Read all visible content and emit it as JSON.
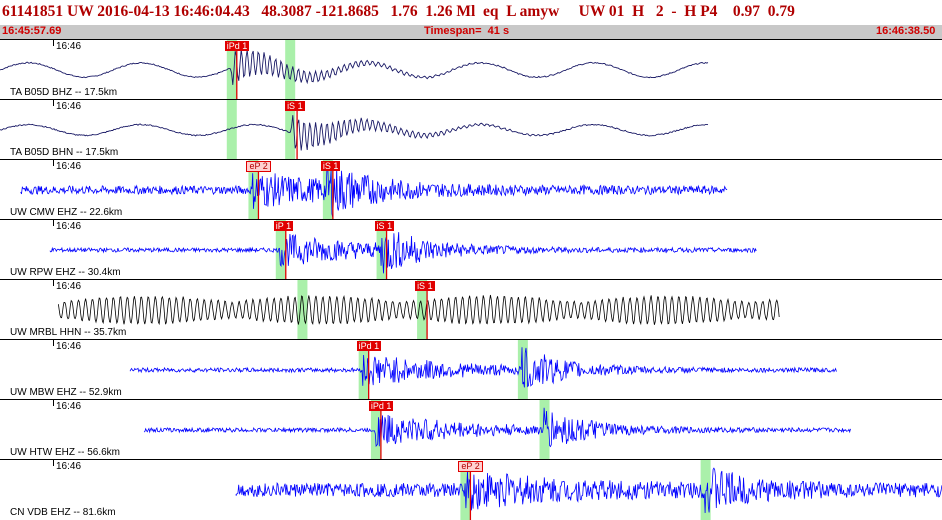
{
  "header": {
    "title": "61141851 UW 2016-04-13 16:46:04.43   48.3087 -121.8685   1.76  1.26 Ml  eq  L amyw     UW 01  H   2  -  H P4    0.97  0.79",
    "start_time": "16:45:57.69",
    "timespan": "Timespan=  41 s",
    "end_time": "16:46:38.50"
  },
  "colors": {
    "waveform_dark": "#1a1a66",
    "waveform_blue": "#0000ff",
    "waveform_black": "#000000",
    "pick_flag": "#e00000",
    "window_highlight": "#aaf0aa",
    "subbar_bg": "#c8c8c8",
    "title_text": "#b00000"
  },
  "traces": [
    {
      "time_label": "16:46",
      "station": "TA B05D BHZ -- 17.5km",
      "style": "dark",
      "amp": 8,
      "start": 0.0,
      "end": 0.752,
      "picks": [
        {
          "label": "iPd 1",
          "t": 0.245,
          "type": "flag"
        }
      ],
      "windows": [
        0.245,
        0.307
      ]
    },
    {
      "time_label": "16:46",
      "station": "TA B05D BHN -- 17.5km",
      "style": "dark",
      "amp": 6,
      "start": 0.0,
      "end": 0.752,
      "picks": [
        {
          "label": "iS 1",
          "t": 0.309,
          "type": "flag"
        }
      ],
      "windows": [
        0.245,
        0.307
      ]
    },
    {
      "time_label": "16:46",
      "station": "UW CMW EHZ -- 22.6km",
      "style": "blue",
      "amp": 6,
      "start": 0.022,
      "end": 0.772,
      "picks": [
        {
          "label": "eP 2",
          "t": 0.268,
          "type": "light"
        },
        {
          "label": "iS 1",
          "t": 0.347,
          "type": "flag"
        }
      ],
      "windows": [
        0.268,
        0.347
      ]
    },
    {
      "time_label": "16:46",
      "station": "UW RPW EHZ -- 30.4km",
      "style": "blue",
      "amp": 3,
      "start": 0.053,
      "end": 0.803,
      "picks": [
        {
          "label": "iP 1",
          "t": 0.297,
          "type": "flag"
        },
        {
          "label": "iS 1",
          "t": 0.404,
          "type": "flag"
        }
      ],
      "windows": [
        0.297,
        0.404
      ]
    },
    {
      "time_label": "16:46",
      "station": "UW MRBL HHN -- 35.7km",
      "style": "black",
      "amp": 14,
      "start": 0.062,
      "end": 0.828,
      "picks": [
        {
          "label": "iS 1",
          "t": 0.447,
          "type": "flag"
        }
      ],
      "windows": [
        0.32,
        0.447
      ]
    },
    {
      "time_label": "16:46",
      "station": "UW MBW EHZ -- 52.9km",
      "style": "blue",
      "amp": 3,
      "start": 0.138,
      "end": 0.888,
      "picks": [
        {
          "label": "iPd 1",
          "t": 0.385,
          "type": "flag"
        }
      ],
      "windows": [
        0.385,
        0.554
      ]
    },
    {
      "time_label": "16:46",
      "station": "UW HTW EHZ -- 56.6km",
      "style": "blue",
      "amp": 3,
      "start": 0.153,
      "end": 0.903,
      "picks": [
        {
          "label": "iPd 1",
          "t": 0.398,
          "type": "flag"
        }
      ],
      "windows": [
        0.398,
        0.577
      ]
    },
    {
      "time_label": "16:46",
      "station": "CN VDB EHZ -- 81.6km",
      "style": "blue",
      "amp": 10,
      "start": 0.25,
      "end": 1.0,
      "picks": [
        {
          "label": "eP 2",
          "t": 0.493,
          "type": "light"
        }
      ],
      "windows": [
        0.493,
        0.748
      ]
    }
  ]
}
